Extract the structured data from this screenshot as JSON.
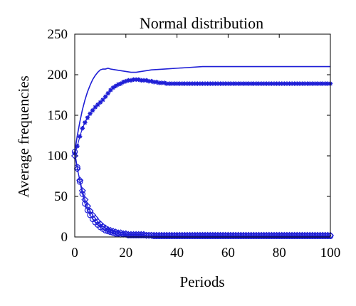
{
  "chart_data": {
    "type": "line",
    "title": "Normal distribution",
    "xlabel": "Periods",
    "ylabel": "Average frequencies",
    "xlim": [
      0,
      100
    ],
    "ylim": [
      0,
      250
    ],
    "xticks": [
      "0",
      "20",
      "40",
      "60",
      "80",
      "100"
    ],
    "yticks": [
      "0",
      "50",
      "100",
      "150",
      "200",
      "250"
    ],
    "grid": false,
    "legend": "none",
    "line_color": "#1f1fd6",
    "series": [
      {
        "marker": "none",
        "x": [
          0,
          1,
          2,
          3,
          4,
          5,
          6,
          7,
          8,
          9,
          10,
          11,
          12,
          13,
          14,
          16,
          18,
          20,
          22,
          24,
          26,
          28,
          30,
          35,
          40,
          45,
          50,
          60,
          70,
          80,
          90,
          100
        ],
        "y": [
          105,
          125,
          142,
          157,
          169,
          179,
          187,
          194,
          199,
          203,
          206,
          207,
          207,
          208,
          207,
          206,
          205,
          204,
          203,
          203,
          204,
          205,
          206,
          207,
          208,
          209,
          210,
          210,
          210,
          210,
          210,
          210
        ]
      },
      {
        "marker": "star",
        "x": [
          0,
          1,
          2,
          3,
          4,
          5,
          6,
          7,
          8,
          9,
          10,
          11,
          12,
          13,
          14,
          15,
          16,
          17,
          18,
          19,
          20,
          21,
          22,
          23,
          24,
          25,
          26,
          27,
          28,
          29,
          30,
          31,
          32,
          33,
          34,
          35,
          36,
          37,
          38,
          39,
          40,
          41,
          42,
          43,
          44,
          45,
          46,
          47,
          48,
          49,
          50,
          51,
          52,
          53,
          54,
          55,
          56,
          57,
          58,
          59,
          60,
          61,
          62,
          63,
          64,
          65,
          66,
          67,
          68,
          69,
          70,
          71,
          72,
          73,
          74,
          75,
          76,
          77,
          78,
          79,
          80,
          81,
          82,
          83,
          84,
          85,
          86,
          87,
          88,
          89,
          90,
          91,
          92,
          93,
          94,
          95,
          96,
          97,
          98,
          99,
          100
        ],
        "y": [
          103,
          112,
          124,
          134,
          141,
          147,
          152,
          156,
          160,
          163,
          166,
          169,
          173,
          177,
          181,
          184,
          186,
          188,
          189,
          191,
          192,
          193,
          193,
          194,
          194,
          194,
          193,
          193,
          193,
          192,
          192,
          191,
          191,
          190,
          190,
          190,
          189,
          189,
          189,
          189,
          189,
          189,
          189,
          189,
          189,
          189,
          189,
          189,
          189,
          189,
          189,
          189,
          189,
          189,
          189,
          189,
          189,
          189,
          189,
          189,
          189,
          189,
          189,
          189,
          189,
          189,
          189,
          189,
          189,
          189,
          189,
          189,
          189,
          189,
          189,
          189,
          189,
          189,
          189,
          189,
          189,
          189,
          189,
          189,
          189,
          189,
          189,
          189,
          189,
          189,
          189,
          189,
          189,
          189,
          189,
          189,
          189,
          189,
          189,
          189,
          189
        ]
      },
      {
        "marker": "diamond",
        "x": [
          0,
          1,
          2,
          3,
          4,
          5,
          6,
          7,
          8,
          9,
          10,
          11,
          12,
          13,
          14,
          15,
          16,
          17,
          18,
          19,
          20,
          21,
          22,
          23,
          24,
          25,
          26,
          27,
          28,
          29,
          30,
          31,
          32,
          33,
          34,
          35,
          36,
          37,
          38,
          39,
          40,
          41,
          42,
          43,
          44,
          45,
          46,
          47,
          48,
          49,
          50,
          51,
          52,
          53,
          54,
          55,
          56,
          57,
          58,
          59,
          60,
          61,
          62,
          63,
          64,
          65,
          66,
          67,
          68,
          69,
          70,
          71,
          72,
          73,
          74,
          75,
          76,
          77,
          78,
          79,
          80,
          81,
          82,
          83,
          84,
          85,
          86,
          87,
          88,
          89,
          90,
          91,
          92,
          93,
          94,
          95,
          96,
          97,
          98,
          99,
          100
        ],
        "y": [
          100,
          84,
          70,
          57,
          46,
          38,
          32,
          27,
          23,
          19,
          16,
          13,
          11,
          9,
          8,
          7,
          6,
          5,
          5,
          4,
          4,
          3,
          3,
          3,
          3,
          3,
          3,
          3,
          2,
          2,
          2,
          2,
          2,
          2,
          2,
          2,
          2,
          2,
          2,
          2,
          2,
          2,
          2,
          2,
          2,
          2,
          2,
          2,
          2,
          2,
          2,
          2,
          2,
          2,
          2,
          2,
          2,
          2,
          2,
          2,
          2,
          2,
          2,
          2,
          2,
          2,
          2,
          2,
          2,
          2,
          2,
          2,
          2,
          2,
          2,
          2,
          2,
          2,
          2,
          2,
          2,
          2,
          2,
          2,
          2,
          2,
          2,
          2,
          2,
          2,
          2,
          2,
          2,
          2,
          2,
          2,
          2,
          2,
          2,
          2,
          2
        ]
      },
      {
        "marker": "circle",
        "x": [
          0,
          1,
          2,
          3,
          4,
          5,
          6,
          7,
          8,
          9,
          10,
          11,
          12,
          13,
          14,
          15,
          16,
          17,
          18,
          19,
          20,
          21,
          22,
          23,
          24,
          25,
          26,
          27,
          28,
          29,
          30,
          31,
          32,
          33,
          34,
          35,
          36,
          37,
          38,
          39,
          40,
          41,
          42,
          43,
          44,
          45,
          46,
          47,
          48,
          49,
          50,
          51,
          52,
          53,
          54,
          55,
          56,
          57,
          58,
          59,
          60,
          61,
          62,
          63,
          64,
          65,
          66,
          67,
          68,
          69,
          70,
          71,
          72,
          73,
          74,
          75,
          76,
          77,
          78,
          79,
          80,
          81,
          82,
          83,
          84,
          85,
          86,
          87,
          88,
          89,
          90,
          91,
          92,
          93,
          94,
          95,
          96,
          97,
          98,
          99,
          100
        ],
        "y": [
          105,
          86,
          68,
          53,
          41,
          33,
          27,
          22,
          18,
          15,
          12,
          10,
          8,
          7,
          6,
          5,
          4,
          4,
          3,
          3,
          3,
          2,
          2,
          2,
          2,
          2,
          2,
          2,
          2,
          2,
          2,
          1,
          1,
          1,
          1,
          1,
          1,
          1,
          1,
          1,
          1,
          1,
          1,
          1,
          1,
          1,
          1,
          1,
          1,
          1,
          1,
          1,
          1,
          1,
          1,
          1,
          1,
          1,
          1,
          1,
          1,
          1,
          1,
          1,
          1,
          1,
          1,
          1,
          1,
          1,
          1,
          1,
          1,
          1,
          1,
          1,
          1,
          1,
          1,
          1,
          1,
          1,
          1,
          1,
          1,
          1,
          1,
          1,
          1,
          1,
          1,
          1,
          1,
          1,
          1,
          1,
          1,
          1,
          1,
          1,
          1
        ]
      }
    ]
  }
}
